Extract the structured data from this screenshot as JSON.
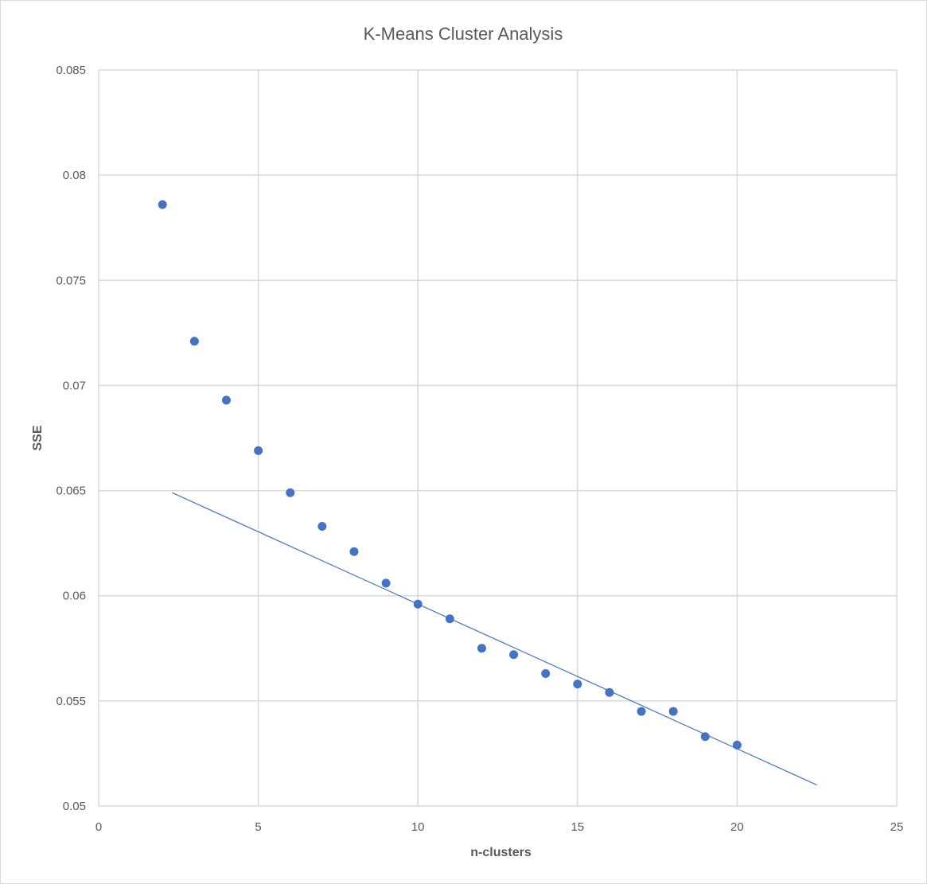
{
  "chart_data": {
    "type": "scatter",
    "title": "K-Means Cluster Analysis",
    "xlabel": "n-clusters",
    "ylabel": "SSE",
    "xlim": [
      0,
      25
    ],
    "ylim": [
      0.05,
      0.085
    ],
    "x_ticks": [
      0,
      5,
      10,
      15,
      20,
      25
    ],
    "y_ticks": [
      0.05,
      0.055,
      0.06,
      0.065,
      0.07,
      0.075,
      0.08,
      0.085
    ],
    "x_tick_labels": [
      "0",
      "5",
      "10",
      "15",
      "20",
      "25"
    ],
    "y_tick_labels": [
      "0.05",
      "0.055",
      "0.06",
      "0.065",
      "0.07",
      "0.075",
      "0.08",
      "0.085"
    ],
    "grid": true,
    "legend": "none",
    "series": [
      {
        "x": [
          2,
          3,
          4,
          5,
          6,
          7,
          8,
          9,
          10,
          11,
          12,
          13,
          14,
          15,
          16,
          17,
          18,
          19,
          20
        ],
        "y": [
          0.0786,
          0.0721,
          0.0693,
          0.0669,
          0.0649,
          0.0633,
          0.0621,
          0.0606,
          0.0596,
          0.0589,
          0.0575,
          0.0572,
          0.0563,
          0.0558,
          0.0554,
          0.0545,
          0.0545,
          0.0533,
          0.0529
        ],
        "color": "#4472c4"
      }
    ],
    "trendline": {
      "type": "linear",
      "x": [
        2.3,
        22.5
      ],
      "y": [
        0.0649,
        0.051
      ],
      "color": "#4472c4"
    }
  }
}
